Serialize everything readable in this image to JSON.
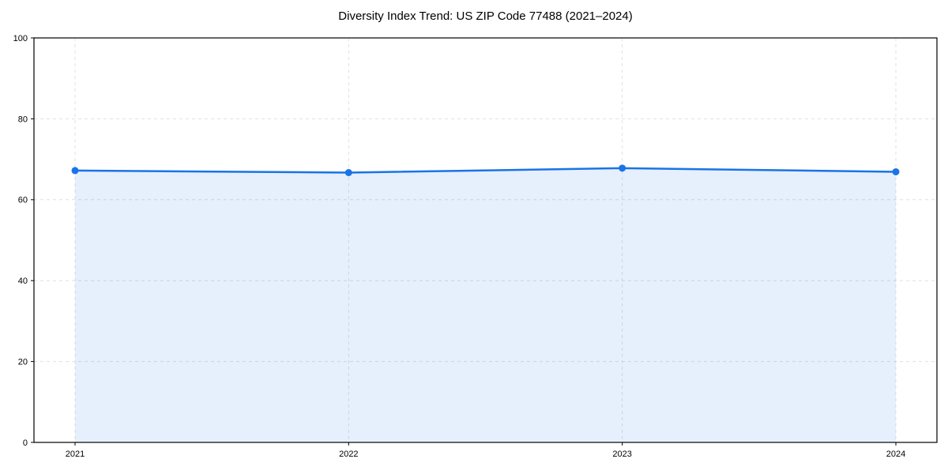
{
  "chart_data": {
    "type": "area",
    "title": "Diversity Index Trend: US ZIP Code 77488 (2021–2024)",
    "categories": [
      "2021",
      "2022",
      "2023",
      "2024"
    ],
    "values": [
      67.2,
      66.7,
      67.8,
      66.9
    ],
    "series": [
      {
        "name": "Diversity Index",
        "values": [
          67.2,
          66.7,
          67.8,
          66.9
        ]
      }
    ],
    "xlabel": "",
    "ylabel": "",
    "ylim": [
      0,
      100
    ],
    "yticks": [
      0,
      20,
      40,
      60,
      80,
      100
    ],
    "legend": "none",
    "grid": {
      "style": "dashed",
      "horizontal": true,
      "vertical": true,
      "color": "#e0e0e0"
    },
    "colors": {
      "line": "#1a73e8",
      "marker": "#1a73e8",
      "fill": "rgba(26,115,232,0.11)",
      "spine": "#000000",
      "tick_label": "#000000",
      "background": "#ffffff"
    }
  }
}
